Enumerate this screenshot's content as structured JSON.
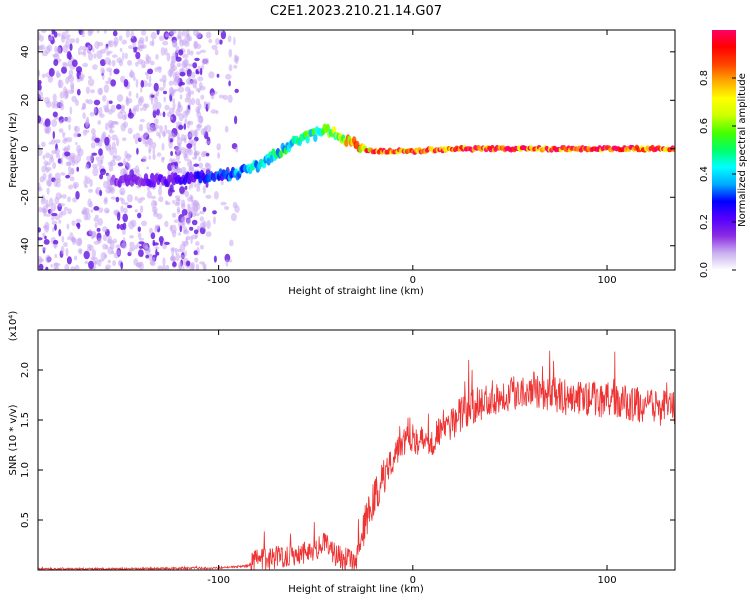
{
  "chart_data": [
    {
      "type": "heatmap",
      "title": "C2E1.2023.210.21.14.G07",
      "xlabel": "Height of straight line (km)",
      "ylabel": "Frequency (Hz)",
      "xlim": [
        -193,
        135
      ],
      "ylim": [
        -50,
        49
      ],
      "xticks": [
        -100,
        0,
        100
      ],
      "yticks": [
        -40,
        -20,
        0,
        20,
        40
      ],
      "colorbar": {
        "label": "Normalized spectral amplitude",
        "range": [
          0,
          1
        ],
        "ticks": [
          0.0,
          0.2,
          0.4,
          0.6,
          0.8
        ],
        "colormap": [
          "#ffffff",
          "#c9b0f0",
          "#8a2be2",
          "#5500ff",
          "#0000ff",
          "#00aaff",
          "#00ffff",
          "#00ff66",
          "#44ff00",
          "#ccff00",
          "#ffff00",
          "#ffaa00",
          "#ff4400",
          "#ff0000",
          "#ff0066"
        ]
      },
      "ridge": {
        "x": [
          -155,
          -130,
          -110,
          -100,
          -90,
          -80,
          -70,
          -60,
          -50,
          -45,
          -40,
          -35,
          -30,
          -25,
          -20,
          -10,
          0,
          20,
          50,
          80,
          110,
          135
        ],
        "freq": [
          -13,
          -13,
          -12,
          -11,
          -10,
          -7,
          -2,
          3,
          6,
          8,
          6,
          4,
          2,
          0,
          -1,
          -1,
          -1,
          0,
          0,
          0,
          0,
          0
        ],
        "amplitude": [
          0.15,
          0.18,
          0.25,
          0.3,
          0.35,
          0.4,
          0.45,
          0.5,
          0.5,
          0.55,
          0.6,
          0.7,
          0.75,
          0.8,
          0.85,
          0.9,
          0.9,
          0.95,
          0.95,
          0.95,
          0.95,
          0.95
        ]
      },
      "noise_extent_x": [
        -193,
        -90
      ]
    },
    {
      "type": "line",
      "xlabel": "Height of straight line (km)",
      "ylabel": "SNR (10 * v/v)",
      "y_multiplier": "(x10⁴)",
      "xlim": [
        -193,
        135
      ],
      "ylim": [
        0,
        2.4
      ],
      "xticks": [
        -100,
        0,
        100
      ],
      "yticks": [
        0.5,
        1.0,
        1.5,
        2.0
      ],
      "color": "#ee3333",
      "series": [
        {
          "x": [
            -193,
            -150,
            -100,
            -85,
            -80,
            -70,
            -60,
            -50,
            -45,
            -40,
            -35,
            -30,
            -25,
            -20,
            -15,
            -10,
            -5,
            0,
            5,
            10,
            15,
            20,
            25,
            30,
            40,
            50,
            60,
            70,
            80,
            90,
            100,
            110,
            120,
            130,
            135
          ],
          "values": [
            0.01,
            0.01,
            0.02,
            0.04,
            0.08,
            0.12,
            0.15,
            0.2,
            0.25,
            0.15,
            0.1,
            0.05,
            0.4,
            0.7,
            0.9,
            1.15,
            1.3,
            1.35,
            1.25,
            1.3,
            1.4,
            1.45,
            1.55,
            1.6,
            1.7,
            1.75,
            1.8,
            1.75,
            1.7,
            1.7,
            1.68,
            1.65,
            1.62,
            1.6,
            1.6
          ]
        }
      ]
    }
  ]
}
